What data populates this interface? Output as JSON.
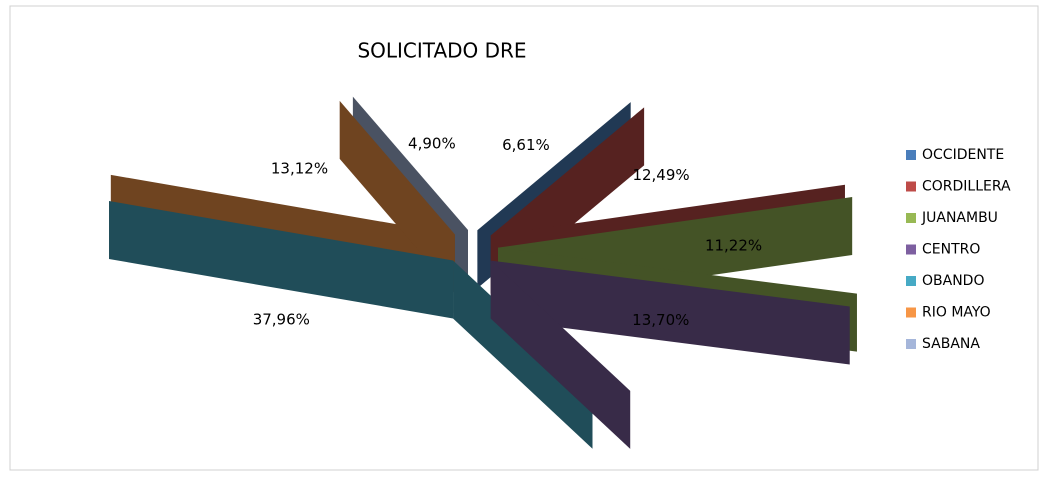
{
  "chart_data": {
    "type": "pie",
    "title": "SOLICITADO DRE",
    "categories": [
      "OCCIDENTE",
      "CORDILLERA",
      "JUANAMBU",
      "CENTRO",
      "OBANDO",
      "RIO MAYO",
      "SABANA"
    ],
    "values": [
      6.61,
      12.49,
      11.22,
      13.7,
      37.96,
      13.12,
      4.9
    ],
    "value_labels": [
      "6,61%",
      "12,49%",
      "11,22%",
      "13,70%",
      "37,96%",
      "13,12%",
      "4,90%"
    ],
    "colors": [
      "#4a7ebb",
      "#be4b48",
      "#98b954",
      "#7d5fa0",
      "#46aac5",
      "#f79646",
      "#a5b6da"
    ],
    "legend": "right"
  }
}
